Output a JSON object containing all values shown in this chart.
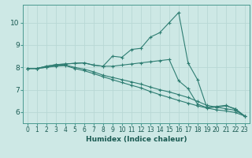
{
  "xlabel": "Humidex (Indice chaleur)",
  "ylabel": "",
  "background_color": "#cde8e5",
  "grid_color": "#b8d8d5",
  "line_color": "#2e7d72",
  "xlim": [
    -0.5,
    23.5
  ],
  "ylim": [
    5.5,
    10.8
  ],
  "yticks": [
    6,
    7,
    8,
    9,
    10
  ],
  "xticks": [
    0,
    1,
    2,
    3,
    4,
    5,
    6,
    7,
    8,
    9,
    10,
    11,
    12,
    13,
    14,
    15,
    16,
    17,
    18,
    19,
    20,
    21,
    22,
    23
  ],
  "lines": [
    [
      7.95,
      7.95,
      8.05,
      8.12,
      8.15,
      8.18,
      8.2,
      8.1,
      8.05,
      8.5,
      8.45,
      8.8,
      8.85,
      9.35,
      9.55,
      10.0,
      10.45,
      8.2,
      7.45,
      6.2,
      6.22,
      6.28,
      6.15,
      5.82
    ],
    [
      7.95,
      7.95,
      8.05,
      8.12,
      8.15,
      8.18,
      8.2,
      8.1,
      8.05,
      8.05,
      8.1,
      8.15,
      8.2,
      8.25,
      8.3,
      8.35,
      7.4,
      7.05,
      6.35,
      6.2,
      6.25,
      6.3,
      6.12,
      5.82
    ],
    [
      7.95,
      7.95,
      8.0,
      8.08,
      8.1,
      8.0,
      7.92,
      7.8,
      7.65,
      7.55,
      7.45,
      7.35,
      7.25,
      7.12,
      7.0,
      6.9,
      6.78,
      6.65,
      6.48,
      6.3,
      6.22,
      6.15,
      6.08,
      5.82
    ],
    [
      7.95,
      7.95,
      8.0,
      8.05,
      8.08,
      7.95,
      7.85,
      7.72,
      7.58,
      7.45,
      7.32,
      7.2,
      7.08,
      6.92,
      6.78,
      6.65,
      6.52,
      6.4,
      6.28,
      6.18,
      6.1,
      6.05,
      5.98,
      5.82
    ]
  ],
  "tick_fontsize": 5.5,
  "xlabel_fontsize": 6.5,
  "tick_color": "#1a5a52",
  "xlabel_color": "#1a5a52"
}
